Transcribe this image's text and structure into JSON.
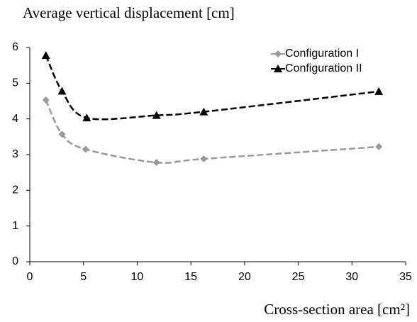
{
  "chart_data": {
    "type": "line",
    "title": "Average vertical displacement [cm]",
    "x_label": "Cross-section area [cm²]",
    "series": [
      {
        "name": "Configuration I",
        "color": "#999999",
        "marker": "diamond",
        "x": [
          1.5,
          3.0,
          5.2,
          11.8,
          16.2,
          32.5
        ],
        "values": [
          4.53,
          3.57,
          3.15,
          2.78,
          2.88,
          3.22
        ]
      },
      {
        "name": "Configuration II",
        "color": "#000000",
        "marker": "triangle",
        "x": [
          1.5,
          3.0,
          5.3,
          11.8,
          16.2,
          32.5
        ],
        "values": [
          5.78,
          4.78,
          4.03,
          4.1,
          4.2,
          4.77
        ]
      }
    ],
    "xlim": [
      0,
      35
    ],
    "xticks": [
      0,
      5,
      10,
      15,
      20,
      25,
      30,
      35
    ],
    "ylim": [
      0,
      6
    ],
    "yticks": [
      0,
      1,
      2,
      3,
      4,
      5,
      6
    ],
    "grid": false,
    "legend": "upper right"
  }
}
